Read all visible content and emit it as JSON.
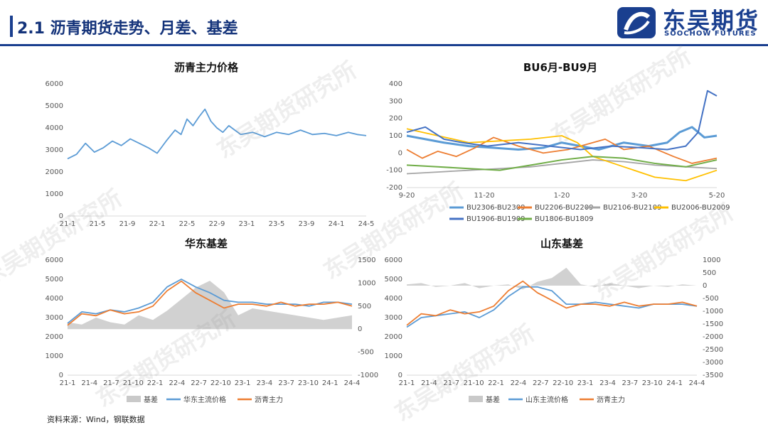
{
  "header": {
    "title": "2.1 沥青期货走势、月差、基差",
    "logo_cn": "东吴期货",
    "logo_en": "SOOCHOW FUTURES"
  },
  "footer": {
    "source": "资料来源：Wind，钢联数据"
  },
  "watermark": "东吴期货研究所",
  "colors": {
    "blue": "#5b9bd5",
    "orange": "#ed7d31",
    "gray": "#a5a5a5",
    "yellow": "#ffc000",
    "darkblue": "#4472c4",
    "green": "#70ad47",
    "brand": "#1a3f8f"
  },
  "chart_data": [
    {
      "id": "main",
      "type": "line",
      "title": "沥青主力价格",
      "x_ticks": [
        "21-1",
        "21-5",
        "21-9",
        "22-1",
        "22-5",
        "22-9",
        "23-1",
        "23-5",
        "23-9",
        "24-1",
        "24-5"
      ],
      "y_ticks": [
        0,
        1000,
        2000,
        3000,
        4000,
        5000,
        6000
      ],
      "ylim": [
        0,
        6000
      ],
      "grid": false,
      "series": [
        {
          "color": "#5b9bd5",
          "x": [
            0,
            0.03,
            0.06,
            0.09,
            0.12,
            0.15,
            0.18,
            0.21,
            0.24,
            0.27,
            0.3,
            0.33,
            0.36,
            0.38,
            0.4,
            0.42,
            0.44,
            0.46,
            0.48,
            0.5,
            0.52,
            0.54,
            0.56,
            0.58,
            0.62,
            0.66,
            0.7,
            0.74,
            0.78,
            0.82,
            0.86,
            0.9,
            0.94,
            0.97,
            1.0
          ],
          "values": [
            2600,
            2800,
            3300,
            2900,
            3100,
            3400,
            3200,
            3500,
            3300,
            3100,
            2850,
            3400,
            3900,
            3700,
            4400,
            4100,
            4500,
            4850,
            4300,
            4000,
            3800,
            4100,
            3900,
            3700,
            3800,
            3600,
            3800,
            3700,
            3900,
            3700,
            3750,
            3650,
            3800,
            3700,
            3650
          ]
        }
      ]
    },
    {
      "id": "spread",
      "type": "line",
      "title": "BU6月-BU9月",
      "x_ticks": [
        "9-20",
        "11-20",
        "1-20",
        "3-20",
        "5-20"
      ],
      "y_ticks": [
        -200,
        -100,
        0,
        100,
        200,
        300,
        400
      ],
      "ylim": [
        -200,
        400
      ],
      "grid": false,
      "series": [
        {
          "name": "BU2306-BU2309",
          "color": "#5b9bd5",
          "stroke": 3,
          "x": [
            0,
            0.06,
            0.12,
            0.2,
            0.28,
            0.36,
            0.44,
            0.5,
            0.56,
            0.62,
            0.7,
            0.78,
            0.84,
            0.88,
            0.92,
            0.96,
            1.0
          ],
          "values": [
            100,
            80,
            60,
            40,
            30,
            20,
            30,
            60,
            40,
            20,
            60,
            40,
            60,
            120,
            150,
            90,
            100
          ]
        },
        {
          "name": "BU2206-BU2209",
          "color": "#ed7d31",
          "x": [
            0,
            0.05,
            0.1,
            0.16,
            0.22,
            0.28,
            0.36,
            0.44,
            0.52,
            0.6,
            0.64,
            0.7,
            0.78,
            0.86,
            0.92,
            1.0
          ],
          "values": [
            20,
            -30,
            10,
            -20,
            30,
            90,
            40,
            0,
            20,
            60,
            80,
            20,
            40,
            -20,
            -60,
            -30
          ]
        },
        {
          "name": "BU2106-BU2109",
          "color": "#a5a5a5",
          "x": [
            0,
            0.1,
            0.2,
            0.3,
            0.4,
            0.5,
            0.6,
            0.7,
            0.8,
            0.9,
            1.0
          ],
          "values": [
            -120,
            -110,
            -100,
            -90,
            -80,
            -60,
            -40,
            -50,
            -70,
            -80,
            -90
          ]
        },
        {
          "name": "BU2006-BU2009",
          "color": "#ffc000",
          "x": [
            0,
            0.1,
            0.2,
            0.3,
            0.4,
            0.5,
            0.55,
            0.6,
            0.7,
            0.8,
            0.9,
            1.0
          ],
          "values": [
            140,
            100,
            60,
            70,
            80,
            100,
            60,
            -20,
            -80,
            -140,
            -160,
            -100
          ]
        },
        {
          "name": "BU1906-BU1909",
          "color": "#4472c4",
          "stroke": 2,
          "x": [
            0,
            0.06,
            0.12,
            0.18,
            0.26,
            0.36,
            0.46,
            0.56,
            0.66,
            0.76,
            0.84,
            0.9,
            0.94,
            0.97,
            1.0
          ],
          "values": [
            120,
            150,
            80,
            60,
            40,
            60,
            40,
            20,
            40,
            30,
            20,
            40,
            120,
            360,
            330
          ]
        },
        {
          "name": "BU1806-BU1809",
          "color": "#70ad47",
          "stroke": 2,
          "x": [
            0,
            0.1,
            0.2,
            0.3,
            0.4,
            0.5,
            0.6,
            0.7,
            0.8,
            0.9,
            1.0
          ],
          "values": [
            -70,
            -80,
            -90,
            -100,
            -70,
            -40,
            -20,
            -30,
            -60,
            -80,
            -40
          ]
        }
      ]
    },
    {
      "id": "east",
      "type": "line",
      "title": "华东基差",
      "x_ticks": [
        "21-1",
        "21-4",
        "21-7",
        "21-10",
        "22-1",
        "22-4",
        "22-7",
        "22-10",
        "23-1",
        "23-4",
        "23-7",
        "23-10",
        "24-1",
        "24-4"
      ],
      "y_ticks": [
        0,
        1000,
        2000,
        3000,
        4000,
        5000,
        6000
      ],
      "ylim": [
        0,
        6000
      ],
      "y2_ticks": [
        -1000,
        -500,
        0,
        500,
        1000,
        1500
      ],
      "y2lim": [
        -1000,
        1500
      ],
      "grid": false,
      "series": [
        {
          "name": "基差",
          "color": "#c9c9c9",
          "axis": "right",
          "kind": "area",
          "x": [
            0,
            0.05,
            0.1,
            0.15,
            0.2,
            0.25,
            0.3,
            0.35,
            0.4,
            0.45,
            0.5,
            0.55,
            0.6,
            0.65,
            0.7,
            0.75,
            0.8,
            0.85,
            0.9,
            0.95,
            1.0
          ],
          "values": [
            150,
            100,
            250,
            150,
            100,
            300,
            200,
            400,
            650,
            900,
            1050,
            800,
            300,
            450,
            400,
            350,
            300,
            250,
            200,
            250,
            300
          ]
        },
        {
          "name": "华东主流价格",
          "color": "#5b9bd5",
          "axis": "left",
          "x": [
            0,
            0.05,
            0.1,
            0.15,
            0.2,
            0.25,
            0.3,
            0.35,
            0.4,
            0.45,
            0.5,
            0.55,
            0.6,
            0.65,
            0.7,
            0.75,
            0.8,
            0.85,
            0.9,
            0.95,
            1.0
          ],
          "values": [
            2700,
            3300,
            3200,
            3400,
            3300,
            3500,
            3800,
            4600,
            5000,
            4600,
            4300,
            3900,
            3800,
            3800,
            3700,
            3700,
            3700,
            3600,
            3800,
            3800,
            3700
          ]
        },
        {
          "name": "沥青主力",
          "color": "#ed7d31",
          "axis": "left",
          "x": [
            0,
            0.05,
            0.1,
            0.15,
            0.2,
            0.25,
            0.3,
            0.35,
            0.4,
            0.45,
            0.5,
            0.55,
            0.6,
            0.65,
            0.7,
            0.75,
            0.8,
            0.85,
            0.9,
            0.95,
            1.0
          ],
          "values": [
            2600,
            3200,
            3100,
            3400,
            3200,
            3300,
            3600,
            4400,
            4900,
            4300,
            3900,
            3500,
            3700,
            3700,
            3600,
            3800,
            3600,
            3700,
            3700,
            3800,
            3600
          ]
        }
      ]
    },
    {
      "id": "shandong",
      "type": "line",
      "title": "山东基差",
      "x_ticks": [
        "21-1",
        "21-4",
        "21-7",
        "21-10",
        "22-1",
        "22-4",
        "22-7",
        "22-10",
        "23-1",
        "23-4",
        "23-7",
        "23-10",
        "24-1",
        "24-4"
      ],
      "y_ticks": [
        0,
        1000,
        2000,
        3000,
        4000,
        5000,
        6000
      ],
      "ylim": [
        0,
        6000
      ],
      "y2_ticks": [
        -3500,
        -3000,
        -2500,
        -2000,
        -1500,
        -1000,
        -500,
        0,
        500,
        1000
      ],
      "y2lim": [
        -3500,
        1000
      ],
      "grid": false,
      "series": [
        {
          "name": "基差",
          "color": "#c9c9c9",
          "axis": "right",
          "kind": "area",
          "x": [
            0,
            0.05,
            0.1,
            0.15,
            0.2,
            0.25,
            0.3,
            0.35,
            0.4,
            0.45,
            0.5,
            0.55,
            0.6,
            0.65,
            0.7,
            0.75,
            0.8,
            0.85,
            0.9,
            0.95,
            1.0
          ],
          "values": [
            50,
            100,
            -50,
            0,
            100,
            -100,
            0,
            50,
            -150,
            150,
            300,
            700,
            50,
            -50,
            100,
            0,
            -100,
            0,
            -50,
            50,
            0
          ]
        },
        {
          "name": "山东主流价格",
          "color": "#5b9bd5",
          "axis": "left",
          "x": [
            0,
            0.05,
            0.1,
            0.15,
            0.2,
            0.25,
            0.3,
            0.35,
            0.4,
            0.45,
            0.5,
            0.55,
            0.6,
            0.65,
            0.7,
            0.75,
            0.8,
            0.85,
            0.9,
            0.95,
            1.0
          ],
          "values": [
            2500,
            3000,
            3100,
            3200,
            3300,
            3000,
            3400,
            4100,
            4600,
            4600,
            4400,
            3700,
            3700,
            3800,
            3700,
            3600,
            3500,
            3700,
            3700,
            3700,
            3600
          ]
        },
        {
          "name": "沥青主力",
          "color": "#ed7d31",
          "axis": "left",
          "x": [
            0,
            0.05,
            0.1,
            0.15,
            0.2,
            0.25,
            0.3,
            0.35,
            0.4,
            0.45,
            0.5,
            0.55,
            0.6,
            0.65,
            0.7,
            0.75,
            0.8,
            0.85,
            0.9,
            0.95,
            1.0
          ],
          "values": [
            2600,
            3200,
            3100,
            3400,
            3200,
            3300,
            3600,
            4400,
            4900,
            4300,
            3900,
            3500,
            3700,
            3700,
            3600,
            3800,
            3600,
            3700,
            3700,
            3800,
            3600
          ]
        }
      ]
    }
  ]
}
